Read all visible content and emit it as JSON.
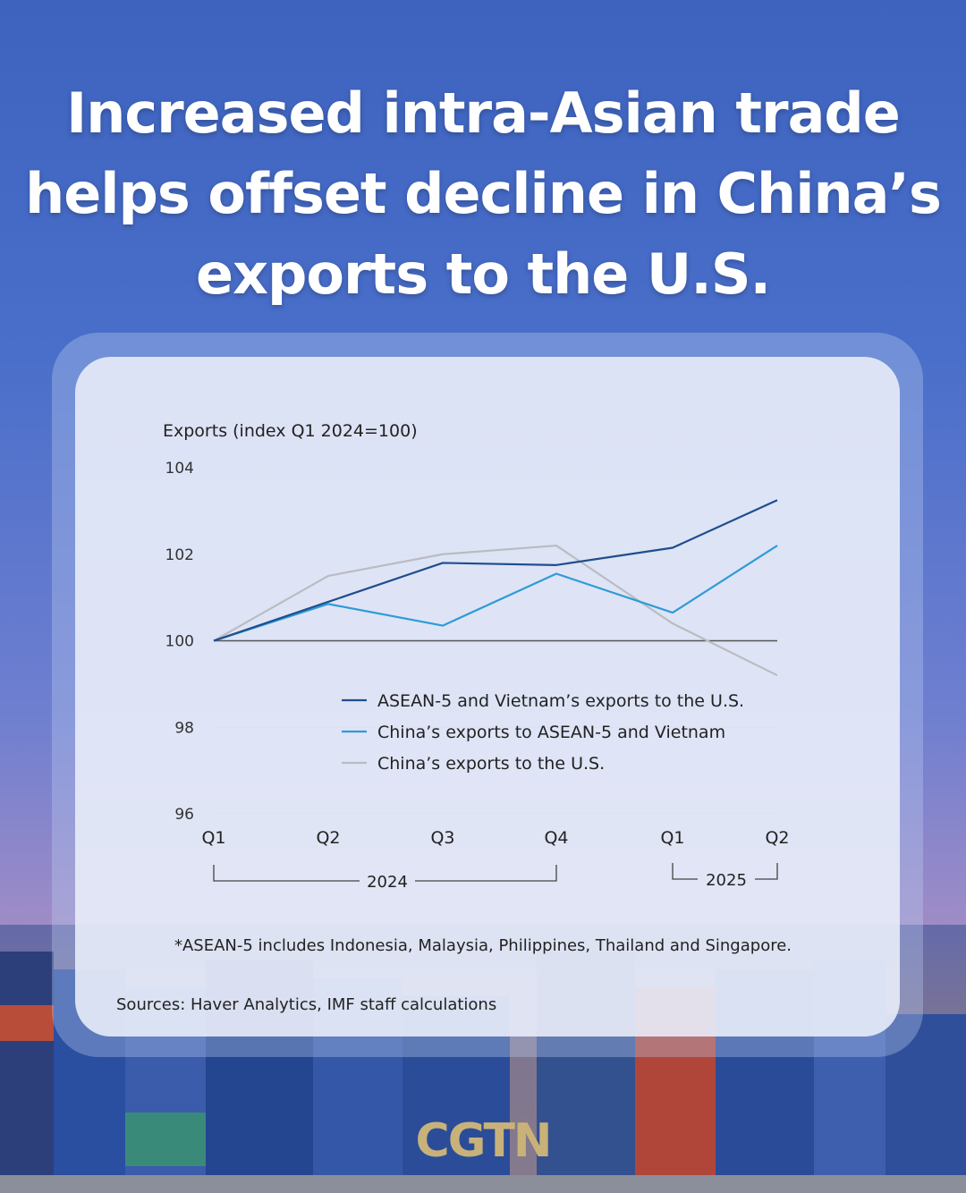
{
  "headline": {
    "line1": "Increased intra-Asian trade",
    "line2": "helps offset decline in China’s",
    "line3": "exports to the U.S."
  },
  "footnote": "*ASEAN-5 includes Indonesia, Malaysia, Philippines, Thailand and Singapore.",
  "sources": "Sources: Haver Analytics, IMF staff calculations",
  "logo": "CGTN",
  "chart_data": {
    "type": "line",
    "ylabel": "Exports (index Q1 2024=100)",
    "ylim": [
      96,
      104
    ],
    "yticks": [
      104,
      102,
      100,
      98,
      96
    ],
    "categories": [
      "Q1",
      "Q2",
      "Q3",
      "Q4",
      "Q1",
      "Q2"
    ],
    "year_groups": [
      {
        "label": "2024",
        "from": 0,
        "to": 3
      },
      {
        "label": "2025",
        "from": 4,
        "to": 5
      }
    ],
    "reference_line": 100,
    "grid": true,
    "legend_position": "center",
    "series": [
      {
        "name": "ASEAN-5 and Vietnam’s exports to the U.S.",
        "color": "#1f4e8c",
        "values": [
          100,
          100.9,
          101.8,
          101.75,
          102.15,
          103.25
        ]
      },
      {
        "name": "China’s exports to ASEAN-5 and Vietnam",
        "color": "#2f9bd6",
        "values": [
          100,
          100.85,
          100.35,
          101.55,
          100.65,
          102.2
        ]
      },
      {
        "name": "China’s exports to the U.S.",
        "color": "#b9bcc1",
        "values": [
          100,
          101.5,
          102.0,
          102.2,
          100.4,
          99.2
        ]
      }
    ]
  }
}
